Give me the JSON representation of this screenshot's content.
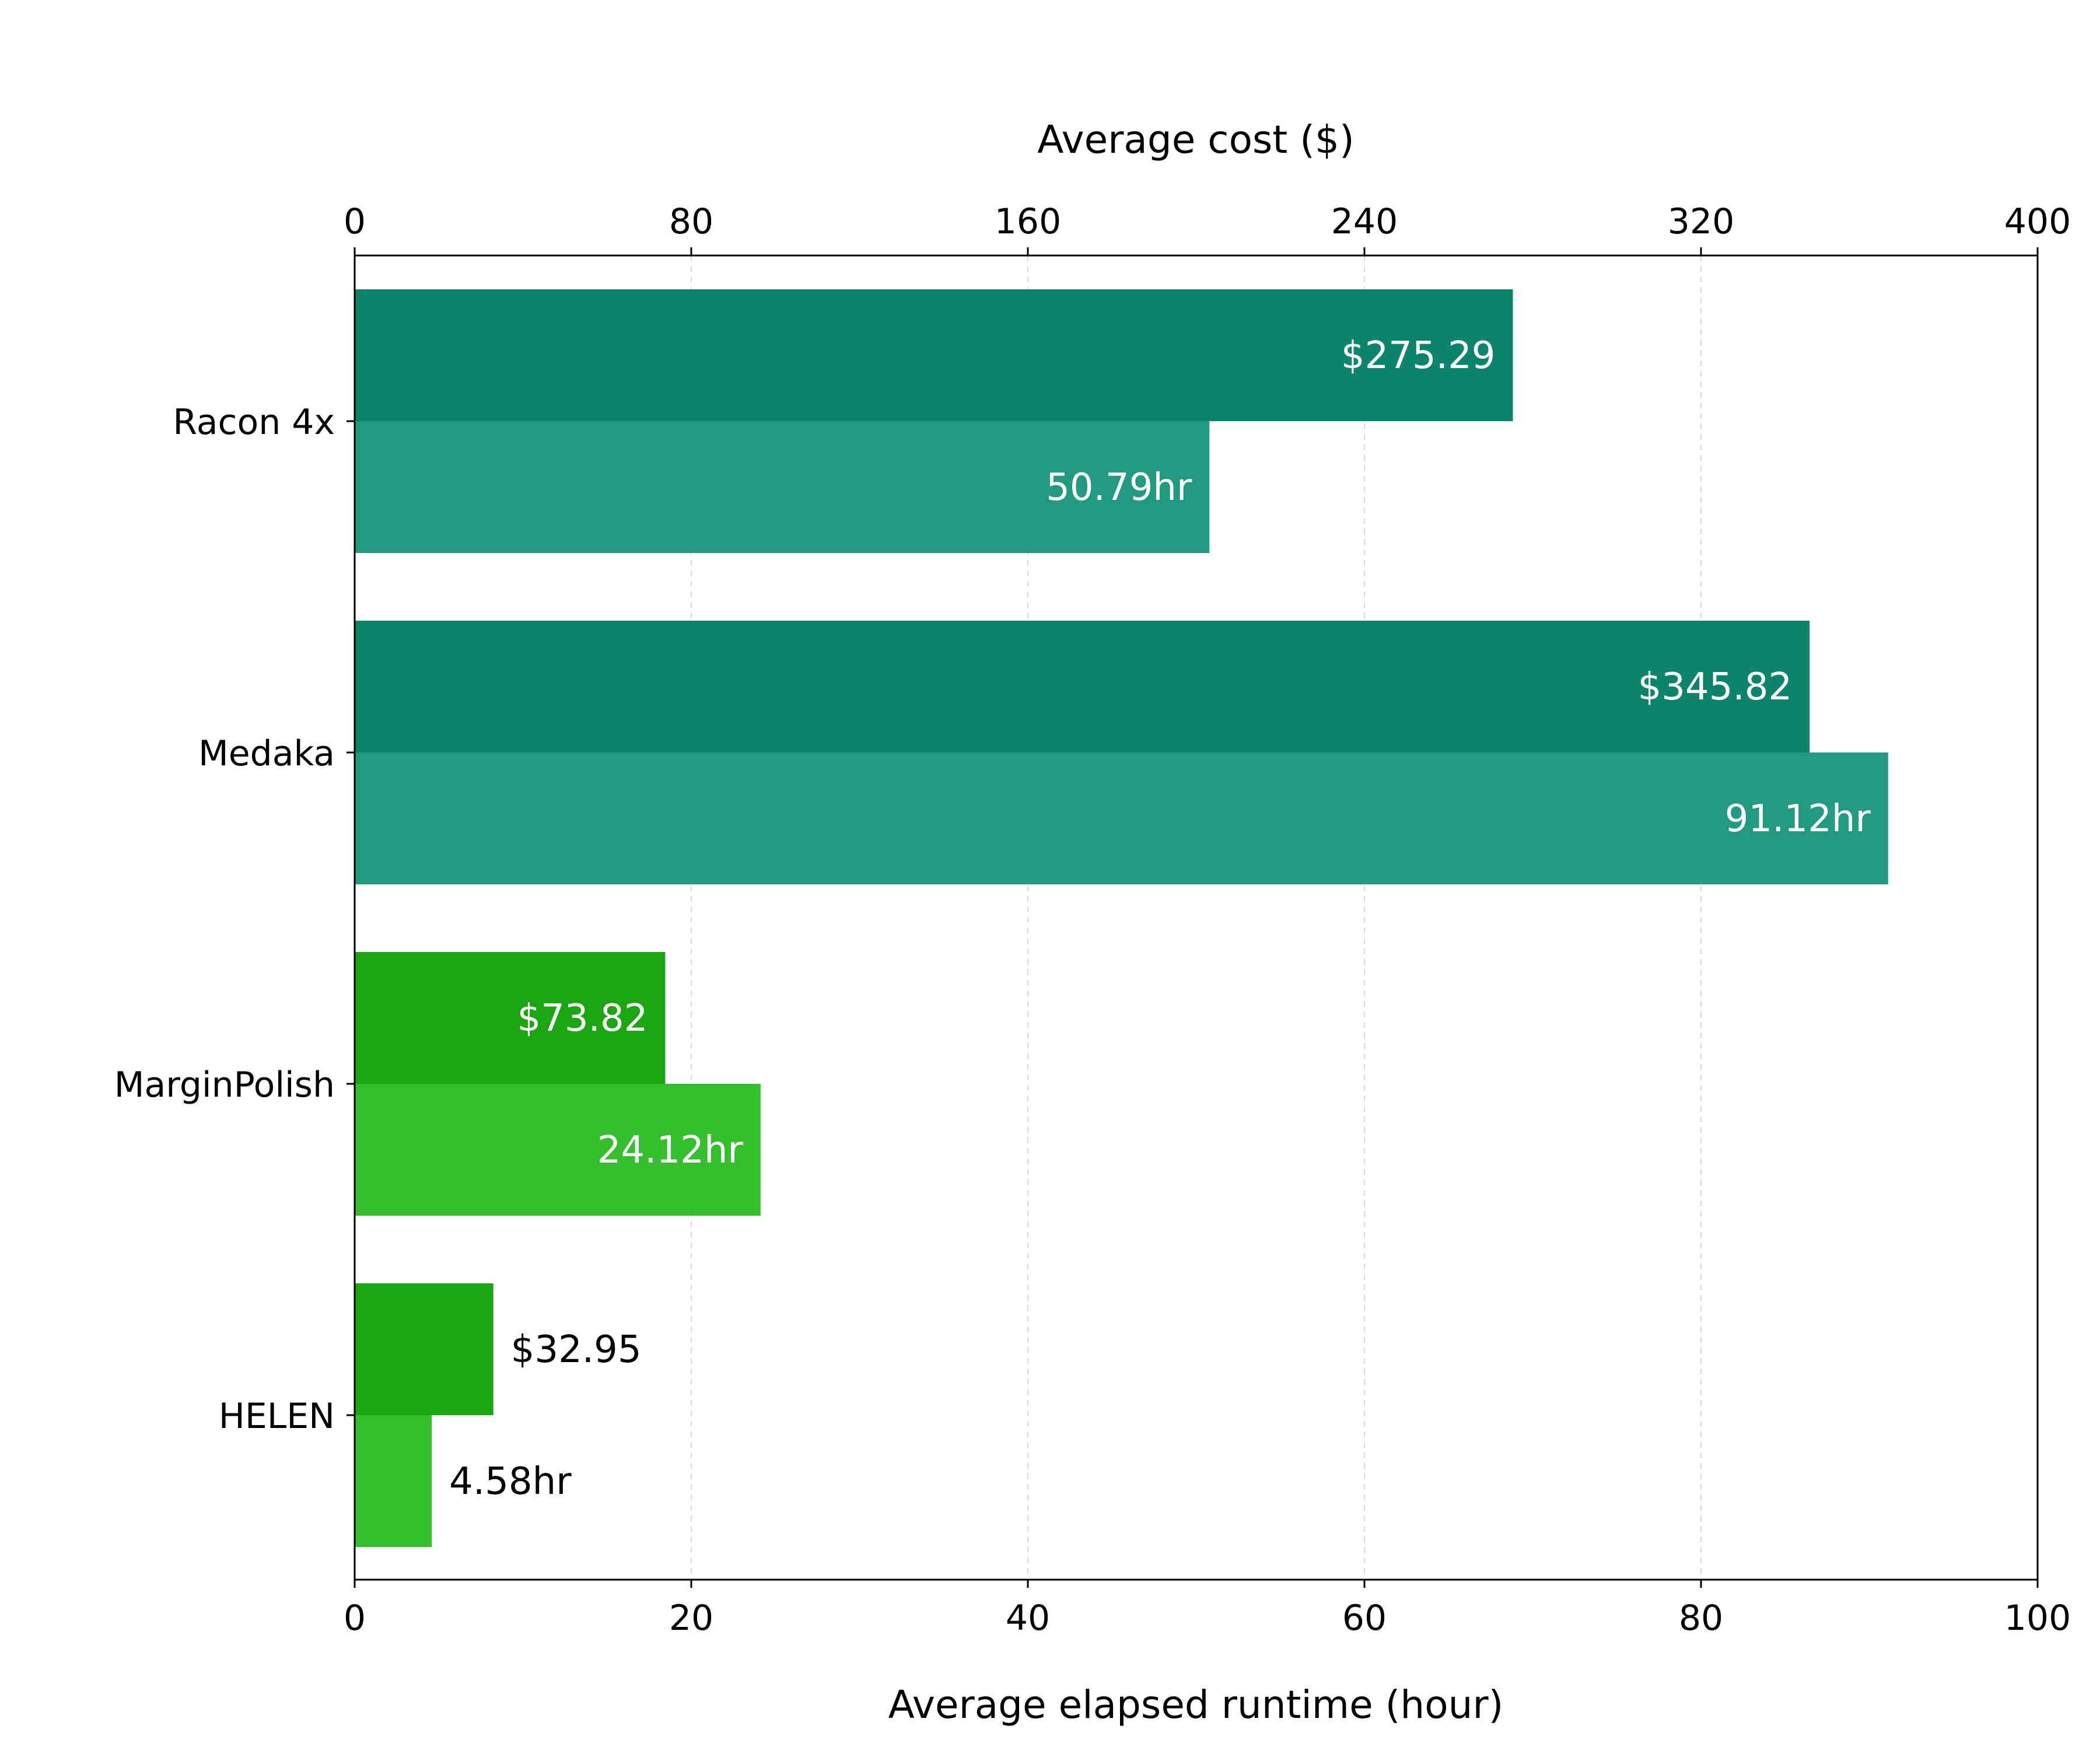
{
  "chart_data": {
    "type": "bar",
    "orientation": "horizontal",
    "categories": [
      "Racon 4x",
      "Medaka",
      "MarginPolish",
      "HELEN"
    ],
    "series": [
      {
        "values": [
          275.29,
          345.82,
          73.82,
          32.95
        ],
        "labels": [
          "$275.29",
          "$345.82",
          "$73.82",
          "$32.95"
        ],
        "axis": "top",
        "colors": [
          "#0e856b",
          "#0e856b",
          "#1ba510",
          "#1ba510"
        ]
      },
      {
        "values": [
          50.79,
          91.12,
          24.12,
          4.58
        ],
        "labels": [
          "50.79hr",
          "91.12hr",
          "24.12hr",
          "4.58hr"
        ],
        "axis": "bottom",
        "colors": [
          "#229a80",
          "#229a80",
          "#35be2d",
          "#35be2d"
        ]
      }
    ],
    "x_top": {
      "label": "Average cost ($)",
      "range": [
        0,
        400
      ],
      "ticks": [
        0,
        80,
        160,
        240,
        320,
        400
      ]
    },
    "x_bottom": {
      "label": "Average elapsed runtime (hour)",
      "range": [
        0,
        100
      ],
      "ticks": [
        0,
        20,
        40,
        60,
        80,
        100
      ]
    },
    "grid": "vertical dashed"
  }
}
